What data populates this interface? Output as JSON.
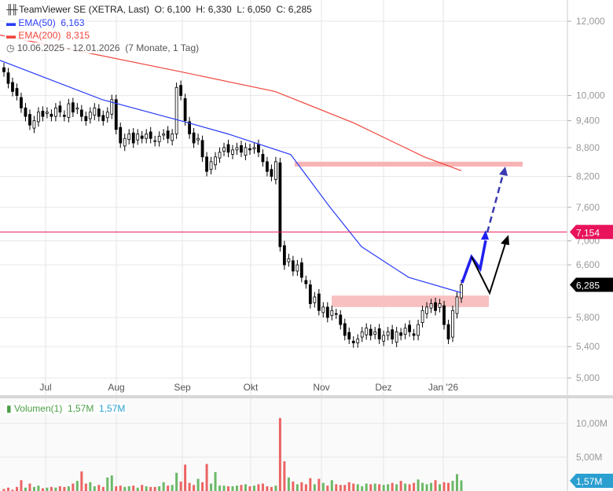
{
  "header": {
    "title": "TeamViewer SE (XETRA, Last)",
    "open": "O: 6,100",
    "high": "H: 6,330",
    "low": "L: 6,050",
    "close": "C: 6,285",
    "ema50_label": "EMA(50)",
    "ema50_value": "6,163",
    "ema200_label": "EMA(200)",
    "ema200_value": "8,315",
    "range": "10.06.2025 - 12.01.2026",
    "range_note": "(7 Monate, 1 Tag)"
  },
  "volume_legend": {
    "label": "Volumen(1)",
    "value": "1,57M",
    "value2": "1,57M"
  },
  "colors": {
    "ema50": "#2a3df5",
    "ema200": "#f0463c",
    "up_volume": "#5aaf55",
    "down_volume": "#ec5c5c",
    "level_line": "#e8135a",
    "zone": "#f8b4b4",
    "volume_badge": "#2a9fd0"
  },
  "chart_data": {
    "type": "candlestick",
    "scale": "log",
    "ylim": [
      4.85,
      12.6
    ],
    "y_ticks": [
      "12,000",
      "10,000",
      "9,400",
      "8,800",
      "8,200",
      "7,600",
      "7,000",
      "6,600",
      "5,800",
      "5,400",
      "5,000"
    ],
    "y_tick_values": [
      12,
      10,
      9.4,
      8.8,
      8.2,
      7.6,
      7.0,
      6.6,
      5.8,
      5.4,
      5.0
    ],
    "x_ticks": [
      "Jul",
      "Aug",
      "Sep",
      "Okt",
      "Nov",
      "Dez",
      "Jan '26"
    ],
    "closes": [
      10.6,
      10.3,
      10.1,
      10.0,
      9.7,
      9.5,
      9.3,
      9.4,
      9.6,
      9.5,
      9.6,
      9.5,
      9.7,
      9.6,
      9.5,
      9.8,
      9.6,
      9.7,
      9.5,
      9.4,
      9.6,
      9.7,
      9.5,
      9.4,
      9.6,
      9.9,
      9.2,
      8.9,
      9.0,
      9.1,
      8.9,
      9.1,
      9.0,
      9.1,
      9.0,
      8.95,
      9.05,
      9.1,
      9.0,
      9.1,
      10.2,
      10.0,
      9.4,
      9.1,
      8.9,
      9.0,
      8.6,
      8.3,
      8.5,
      8.6,
      8.7,
      8.8,
      8.7,
      8.75,
      8.8,
      8.7,
      8.8,
      8.75,
      8.8,
      8.7,
      8.5,
      8.3,
      8.2,
      8.5,
      6.9,
      6.6,
      6.7,
      6.5,
      6.6,
      6.4,
      6.3,
      6.0,
      6.1,
      5.9,
      5.95,
      5.8,
      5.9,
      5.85,
      5.7,
      5.55,
      5.5,
      5.45,
      5.5,
      5.6,
      5.65,
      5.55,
      5.6,
      5.5,
      5.55,
      5.6,
      5.5,
      5.6,
      5.55,
      5.65,
      5.6,
      5.55,
      5.7,
      5.9,
      5.95,
      6.0,
      5.9,
      6.0,
      5.7,
      5.5,
      5.9,
      6.1,
      6.285
    ],
    "ema50": [
      [
        0,
        10.9
      ],
      [
        130,
        9.9
      ],
      [
        240,
        9.35
      ],
      [
        290,
        9.1
      ],
      [
        370,
        8.65
      ],
      [
        420,
        7.6
      ],
      [
        460,
        6.9
      ],
      [
        520,
        6.4
      ],
      [
        587,
        6.163
      ]
    ],
    "ema200": [
      [
        0,
        11.6
      ],
      [
        230,
        10.6
      ],
      [
        350,
        10.1
      ],
      [
        450,
        9.35
      ],
      [
        540,
        8.6
      ],
      [
        587,
        8.315
      ]
    ],
    "last_price": "6,285",
    "level": {
      "value": 7.154,
      "label": "7,154"
    },
    "zones": [
      {
        "from": 8.4,
        "to": 8.5
      },
      {
        "from": 5.95,
        "to": 6.12
      }
    ],
    "volume": {
      "y_ticks": [
        "10,00M",
        "5,00M"
      ],
      "y_tick_values": [
        10,
        5
      ],
      "last": "1,57M",
      "values": [
        0.3,
        0.5,
        0.2,
        0.6,
        1.6,
        0.5,
        1.1,
        0.6,
        0.8,
        0.4,
        0.5,
        0.6,
        0.5,
        0.7,
        0.6,
        0.7,
        1.1,
        1.5,
        2.9,
        1.1,
        1.3,
        0.7,
        0.9,
        0.6,
        2.0,
        2.3,
        0.7,
        0.8,
        0.6,
        0.7,
        0.8,
        0.5,
        0.9,
        0.7,
        0.6,
        0.6,
        0.7,
        1.3,
        0.8,
        0.9,
        2.7,
        1.4,
        3.9,
        1.2,
        0.9,
        1.8,
        1.3,
        4.0,
        1.1,
        2.8,
        0.8,
        0.8,
        0.7,
        0.7,
        0.8,
        0.9,
        1.0,
        0.7,
        0.8,
        1.0,
        1.1,
        0.7,
        0.6,
        0.8,
        10.8,
        4.4,
        2.0,
        1.4,
        1.0,
        1.3,
        1.0,
        1.9,
        1.0,
        1.8,
        1.2,
        0.8,
        1.6,
        1.0,
        0.9,
        0.9,
        1.3,
        1.1,
        1.0,
        0.7,
        1.1,
        1.0,
        1.1,
        1.0,
        0.9,
        1.0,
        1.2,
        1.0,
        1.5,
        1.1,
        1.0,
        1.2,
        1.7,
        1.2,
        1.0,
        1.2,
        1.6,
        1.0,
        1.3,
        1.2,
        1.5,
        2.5,
        1.57
      ],
      "up": [
        0,
        0,
        0,
        0,
        0,
        1,
        0,
        1,
        1,
        0,
        1,
        0,
        1,
        0,
        0,
        1,
        0,
        1,
        0,
        0,
        1,
        1,
        0,
        0,
        1,
        1,
        0,
        0,
        1,
        1,
        0,
        1,
        0,
        1,
        0,
        0,
        1,
        1,
        0,
        1,
        1,
        0,
        0,
        0,
        0,
        1,
        0,
        0,
        1,
        1,
        1,
        1,
        0,
        1,
        1,
        0,
        1,
        0,
        1,
        0,
        0,
        0,
        0,
        1,
        0,
        0,
        1,
        0,
        1,
        0,
        0,
        0,
        1,
        0,
        1,
        0,
        1,
        0,
        0,
        0,
        0,
        0,
        1,
        1,
        1,
        0,
        1,
        0,
        1,
        1,
        0,
        1,
        0,
        1,
        0,
        0,
        1,
        1,
        1,
        1,
        0,
        1,
        0,
        0,
        1,
        1,
        1
      ]
    }
  }
}
